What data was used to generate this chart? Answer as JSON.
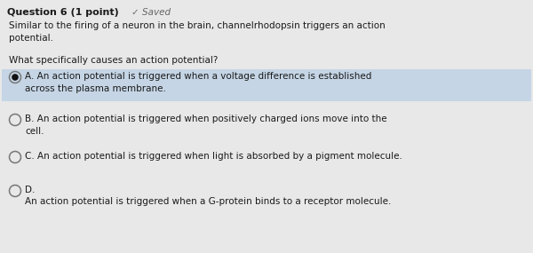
{
  "background_color": "#e8e8e8",
  "title_text": "Question 6 (1 point)",
  "saved_text": "✓ Saved",
  "prompt_text": "Similar to the firing of a neuron in the brain, channelrhodopsin triggers an action\npotential.",
  "question_text": "What specifically causes an action potential?",
  "options": [
    {
      "label": "A",
      "text": "An action potential is triggered when a voltage difference is established\nacross the plasma membrane.",
      "selected": true,
      "highlight_color": "#c5d5e5"
    },
    {
      "label": "B",
      "text": "An action potential is triggered when positively charged ions move into the\ncell.",
      "selected": false,
      "highlight_color": null
    },
    {
      "label": "C",
      "text": "An action potential is triggered when light is absorbed by a pigment molecule.",
      "selected": false,
      "highlight_color": null
    },
    {
      "label": "D",
      "text_line1": "D.",
      "text_line2": "An action potential is triggered when a G-protein binds to a receptor molecule.",
      "selected": false,
      "highlight_color": null
    }
  ],
  "title_fontsize": 8.0,
  "saved_fontsize": 7.5,
  "body_fontsize": 7.5,
  "option_fontsize": 7.5,
  "text_color": "#1a1a1a",
  "saved_color": "#666666",
  "radio_color": "#777777",
  "selected_radio_inner": "#111111",
  "fig_width": 6.0,
  "fig_height": 2.85,
  "dpi": 100
}
